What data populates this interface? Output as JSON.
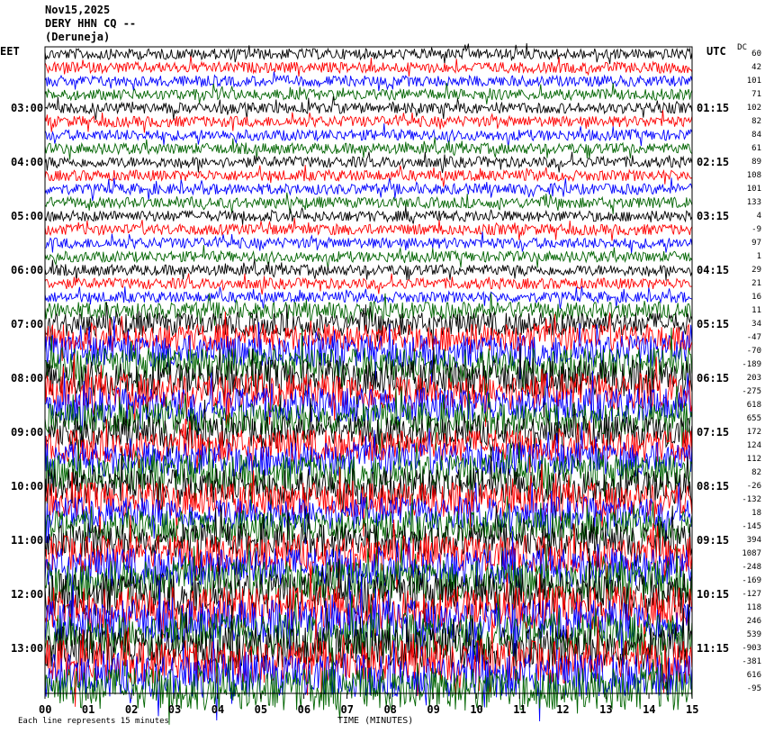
{
  "header": {
    "date": "Nov15,2025",
    "station": "DERY HHN CQ --",
    "location": "(Deruneja)"
  },
  "axes": {
    "left_zone": "EET",
    "right_zone": "UTC",
    "dc_label": "DC"
  },
  "footer": {
    "note": "Each line represents 15 minutes",
    "xlabel": "TIME (MINUTES)"
  },
  "colors": {
    "trace_cycle": [
      "#000000",
      "#ff0000",
      "#0000ff",
      "#006400"
    ],
    "background": "#ffffff"
  },
  "chart_data": {
    "type": "line",
    "title": "Nov15,2025 DERY HHN CQ -- (Deruneja)",
    "xlabel": "TIME (MINUTES)",
    "xlim": [
      0,
      15
    ],
    "x_ticks": [
      "00",
      "01",
      "02",
      "03",
      "04",
      "05",
      "06",
      "07",
      "08",
      "09",
      "10",
      "11",
      "12",
      "13",
      "14",
      "15"
    ],
    "rows": 48,
    "left_time_labels": [
      {
        "row": 4,
        "label": "03:00"
      },
      {
        "row": 8,
        "label": "04:00"
      },
      {
        "row": 12,
        "label": "05:00"
      },
      {
        "row": 16,
        "label": "06:00"
      },
      {
        "row": 20,
        "label": "07:00"
      },
      {
        "row": 24,
        "label": "08:00"
      },
      {
        "row": 28,
        "label": "09:00"
      },
      {
        "row": 32,
        "label": "10:00"
      },
      {
        "row": 36,
        "label": "11:00"
      },
      {
        "row": 40,
        "label": "12:00"
      },
      {
        "row": 44,
        "label": "13:00"
      }
    ],
    "right_time_labels": [
      {
        "row": 4,
        "label": "01:15"
      },
      {
        "row": 8,
        "label": "02:15"
      },
      {
        "row": 12,
        "label": "03:15"
      },
      {
        "row": 16,
        "label": "04:15"
      },
      {
        "row": 20,
        "label": "05:15"
      },
      {
        "row": 24,
        "label": "06:15"
      },
      {
        "row": 28,
        "label": "07:15"
      },
      {
        "row": 32,
        "label": "08:15"
      },
      {
        "row": 36,
        "label": "09:15"
      },
      {
        "row": 40,
        "label": "10:15"
      },
      {
        "row": 44,
        "label": "11:15"
      }
    ],
    "dc_offsets": [
      60,
      42,
      101,
      71,
      102,
      82,
      84,
      61,
      89,
      108,
      101,
      133,
      4,
      -9,
      97,
      1,
      29,
      21,
      16,
      11,
      34,
      -47,
      -70,
      -189,
      203,
      -275,
      618,
      655,
      172,
      124,
      112,
      82,
      -26,
      -132,
      18,
      -145,
      394,
      1087,
      -248,
      -169,
      -127,
      118,
      246,
      539,
      -903,
      -381,
      616,
      -95
    ],
    "amplitude_profile": [
      1,
      1,
      1,
      1,
      1,
      1,
      1,
      1,
      1,
      1,
      1,
      1,
      1,
      1,
      1,
      1,
      1,
      1,
      1,
      1.6,
      2.2,
      2.6,
      3,
      3.2,
      3.4,
      3.4,
      3.2,
      3,
      3,
      3,
      3.2,
      3.4,
      3.4,
      3.2,
      3,
      3,
      3.2,
      3.4,
      3.6,
      3.8,
      4,
      4,
      4,
      4,
      4,
      4,
      4,
      4
    ]
  }
}
